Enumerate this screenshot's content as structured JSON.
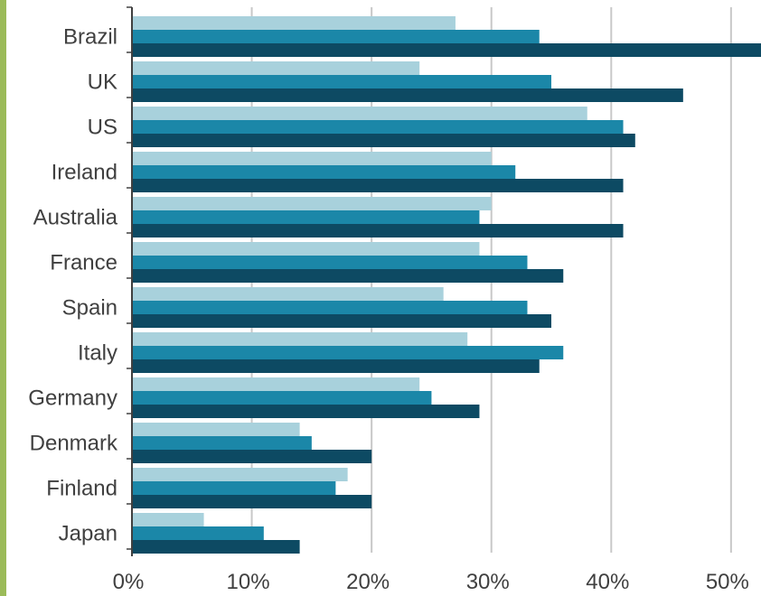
{
  "colors": {
    "accent_bar": "#9bbb59",
    "gridline": "#c8c8c8",
    "axis": "#404040",
    "series": [
      "#a8d1dc",
      "#1b87a8",
      "#0d4a63"
    ]
  },
  "chart_data": {
    "type": "bar",
    "orientation": "horizontal",
    "title": "",
    "xlabel": "",
    "ylabel": "",
    "categories": [
      "Brazil",
      "UK",
      "US",
      "Ireland",
      "Australia",
      "France",
      "Spain",
      "Italy",
      "Germany",
      "Denmark",
      "Finland",
      "Japan"
    ],
    "series": [
      {
        "values": [
          27,
          24,
          38,
          30,
          30,
          29,
          26,
          28,
          24,
          14,
          18,
          6
        ]
      },
      {
        "values": [
          34,
          35,
          41,
          32,
          29,
          33,
          33,
          36,
          25,
          15,
          17,
          11
        ]
      },
      {
        "values": [
          53,
          46,
          42,
          41,
          41,
          36,
          35,
          34,
          29,
          20,
          20,
          14
        ]
      }
    ],
    "xlim": [
      0,
      52.5
    ],
    "xticks": [
      0,
      10,
      20,
      30,
      40,
      50
    ],
    "xtick_labels": [
      "0%",
      "10%",
      "20%",
      "30%",
      "40%",
      "50%"
    ],
    "grid": "vertical",
    "legend": "none"
  }
}
